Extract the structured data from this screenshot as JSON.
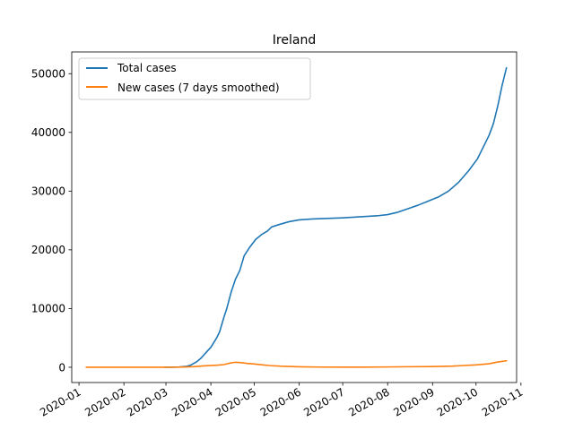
{
  "chart_data": {
    "type": "line",
    "title": "Ireland",
    "xlabel": "",
    "ylabel": "",
    "x_ticks": [
      "2020-01",
      "2020-02",
      "2020-03",
      "2020-04",
      "2020-05",
      "2020-06",
      "2020-07",
      "2020-08",
      "2020-09",
      "2020-10",
      "2020-11"
    ],
    "y_ticks": [
      "0",
      "10000",
      "20000",
      "30000",
      "40000",
      "50000"
    ],
    "xlim": [
      "2019-12-27",
      "2020-10-29"
    ],
    "ylim": [
      -2600,
      53700
    ],
    "grid": false,
    "legend_position": "top-left",
    "series": [
      {
        "name": "Total cases",
        "color": "#1f77b4",
        "points": [
          [
            "2020-02-29",
            0
          ],
          [
            "2020-03-05",
            10
          ],
          [
            "2020-03-10",
            40
          ],
          [
            "2020-03-15",
            150
          ],
          [
            "2020-03-18",
            350
          ],
          [
            "2020-03-22",
            900
          ],
          [
            "2020-03-25",
            1500
          ],
          [
            "2020-03-29",
            2600
          ],
          [
            "2020-04-01",
            3400
          ],
          [
            "2020-04-05",
            5000
          ],
          [
            "2020-04-07",
            6000
          ],
          [
            "2020-04-10",
            8500
          ],
          [
            "2020-04-12",
            10000
          ],
          [
            "2020-04-15",
            12800
          ],
          [
            "2020-04-18",
            15000
          ],
          [
            "2020-04-21",
            16500
          ],
          [
            "2020-04-24",
            19000
          ],
          [
            "2020-04-28",
            20500
          ],
          [
            "2020-05-02",
            21800
          ],
          [
            "2020-05-06",
            22600
          ],
          [
            "2020-05-10",
            23200
          ],
          [
            "2020-05-13",
            23900
          ],
          [
            "2020-05-18",
            24300
          ],
          [
            "2020-05-25",
            24800
          ],
          [
            "2020-06-01",
            25100
          ],
          [
            "2020-06-10",
            25250
          ],
          [
            "2020-06-20",
            25350
          ],
          [
            "2020-07-01",
            25450
          ],
          [
            "2020-07-15",
            25650
          ],
          [
            "2020-07-25",
            25800
          ],
          [
            "2020-08-01",
            26000
          ],
          [
            "2020-08-08",
            26400
          ],
          [
            "2020-08-15",
            27000
          ],
          [
            "2020-08-22",
            27600
          ],
          [
            "2020-08-29",
            28300
          ],
          [
            "2020-09-05",
            29000
          ],
          [
            "2020-09-12",
            30000
          ],
          [
            "2020-09-19",
            31500
          ],
          [
            "2020-09-26",
            33500
          ],
          [
            "2020-10-02",
            35500
          ],
          [
            "2020-10-06",
            37500
          ],
          [
            "2020-10-10",
            39500
          ],
          [
            "2020-10-13",
            41500
          ],
          [
            "2020-10-16",
            44500
          ],
          [
            "2020-10-19",
            48000
          ],
          [
            "2020-10-22",
            51000
          ]
        ]
      },
      {
        "name": "New cases (7 days smoothed)",
        "color": "#ff7f0e",
        "points": [
          [
            "2020-01-06",
            0
          ],
          [
            "2020-02-15",
            0
          ],
          [
            "2020-03-01",
            0
          ],
          [
            "2020-03-10",
            15
          ],
          [
            "2020-03-20",
            100
          ],
          [
            "2020-03-28",
            250
          ],
          [
            "2020-04-05",
            350
          ],
          [
            "2020-04-10",
            450
          ],
          [
            "2020-04-15",
            750
          ],
          [
            "2020-04-18",
            850
          ],
          [
            "2020-04-22",
            780
          ],
          [
            "2020-04-26",
            650
          ],
          [
            "2020-05-01",
            550
          ],
          [
            "2020-05-06",
            420
          ],
          [
            "2020-05-12",
            280
          ],
          [
            "2020-05-20",
            170
          ],
          [
            "2020-06-01",
            80
          ],
          [
            "2020-06-15",
            30
          ],
          [
            "2020-07-01",
            20
          ],
          [
            "2020-07-15",
            25
          ],
          [
            "2020-08-01",
            50
          ],
          [
            "2020-08-15",
            90
          ],
          [
            "2020-09-01",
            120
          ],
          [
            "2020-09-15",
            200
          ],
          [
            "2020-10-01",
            400
          ],
          [
            "2020-10-10",
            600
          ],
          [
            "2020-10-16",
            900
          ],
          [
            "2020-10-22",
            1100
          ]
        ]
      }
    ]
  }
}
